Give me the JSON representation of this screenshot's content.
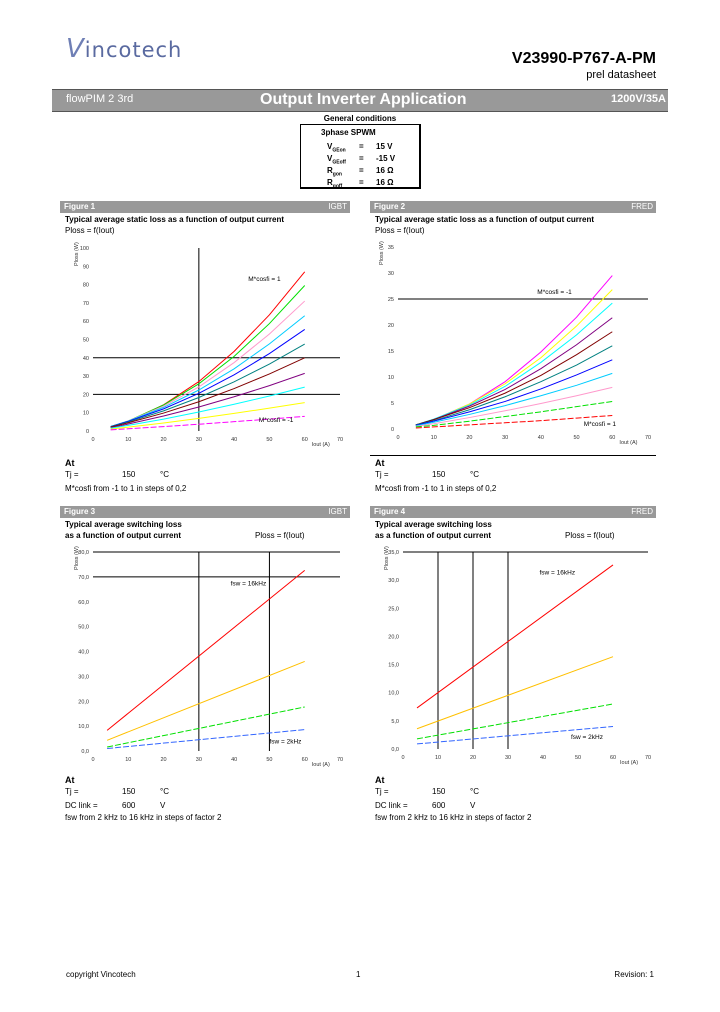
{
  "header": {
    "logo": "Vincotech",
    "part_number": "V23990-P767-A-PM",
    "doc_type": "prel datasheet"
  },
  "banner": {
    "left": "flowPIM 2 3rd",
    "center": "Output Inverter Application",
    "right": "1200V/35A"
  },
  "general_conditions": {
    "title": "General conditions",
    "mode": "3phase SPWM",
    "rows": [
      {
        "sym": "V",
        "sub": "GEon",
        "eq": "=",
        "val": "15 V"
      },
      {
        "sym": "V",
        "sub": "GEoff",
        "eq": "=",
        "val": "-15 V"
      },
      {
        "sym": "R",
        "sub": "gon",
        "eq": "=",
        "val": "16 Ω"
      },
      {
        "sym": "R",
        "sub": "goff",
        "eq": "=",
        "val": "16 Ω"
      }
    ]
  },
  "figures": [
    {
      "label": "Figure 1",
      "device": "IGBT",
      "title": "Typical average static loss as a function of output current",
      "title2": "",
      "formula": "Ploss = f(Iout)",
      "at": "At",
      "cond1": "Tj =",
      "cond1_val": "150",
      "cond1_unit": "°C",
      "cond2": "",
      "cond2_val": "",
      "cond2_unit": "",
      "note": "M*cosfi from -1 to 1 in steps of 0,2"
    },
    {
      "label": "Figure 2",
      "device": "FRED",
      "title": "Typical average static loss as a function of output current",
      "title2": "",
      "formula": "Ploss = f(Iout)",
      "at": "At",
      "cond1": "Tj =",
      "cond1_val": "150",
      "cond1_unit": "°C",
      "cond2": "",
      "cond2_val": "",
      "cond2_unit": "",
      "note": "M*cosfi from -1 to 1 in steps of 0,2"
    },
    {
      "label": "Figure 3",
      "device": "IGBT",
      "title": "Typical average switching loss",
      "title2": "as a function of output current",
      "formula": "Ploss = f(Iout)",
      "at": "At",
      "cond1": "Tj =",
      "cond1_val": "150",
      "cond1_unit": "°C",
      "cond2": "DC link =",
      "cond2_val": "600",
      "cond2_unit": "V",
      "note": "fsw from 2 kHz to 16 kHz in steps of factor 2"
    },
    {
      "label": "Figure 4",
      "device": "FRED",
      "title": "Typical average switching loss",
      "title2": "as a function of output current",
      "formula": "Ploss = f(Iout)",
      "at": "At",
      "cond1": "Tj =",
      "cond1_val": "150",
      "cond1_unit": "°C",
      "cond2": "DC link =",
      "cond2_val": "600",
      "cond2_unit": "V",
      "note": "fsw from 2 kHz to 16 kHz in steps of factor 2"
    }
  ],
  "chart_data": [
    {
      "type": "line",
      "xlabel": "Iout (A)",
      "ylabel": "Ploss (W)",
      "xlim": [
        0,
        70
      ],
      "ylim": [
        0,
        100
      ],
      "xticks": [
        "0",
        "10",
        "20",
        "30",
        "40",
        "50",
        "60",
        "70"
      ],
      "yticks": [
        "0",
        "10",
        "20",
        "30",
        "40",
        "50",
        "60",
        "70",
        "80",
        "90",
        "100"
      ],
      "hlines": [
        20,
        40
      ],
      "vlines": [
        30
      ],
      "annotations": [
        {
          "text": "M*cosfi = 1",
          "x": 44,
          "y": 82
        },
        {
          "text": "M*cosfi = -1",
          "x": 47,
          "y": 5
        }
      ],
      "x": [
        5,
        10,
        20,
        30,
        40,
        50,
        60
      ],
      "series": [
        {
          "color": "#ff0000",
          "values": [
            2.2,
            5.3,
            14.3,
            27,
            43.5,
            63.5,
            87
          ]
        },
        {
          "color": "#00e000",
          "values": [
            2.4,
            5.5,
            14.2,
            25.8,
            40.8,
            58.7,
            79.5
          ]
        },
        {
          "color": "#ff99cc",
          "values": [
            2.4,
            5.5,
            13.6,
            24.1,
            37.4,
            53,
            71
          ]
        },
        {
          "color": "#00ccff",
          "values": [
            2.5,
            5.4,
            12.9,
            22.4,
            34,
            47.6,
            63
          ]
        },
        {
          "color": "#0000ff",
          "values": [
            2.4,
            5.3,
            12.1,
            20.6,
            30.7,
            42.3,
            55.5
          ]
        },
        {
          "color": "#008080",
          "values": [
            2.3,
            4.9,
            11,
            18.3,
            26.9,
            36.6,
            47.5
          ]
        },
        {
          "color": "#800000",
          "values": [
            2.1,
            4.5,
            9.8,
            16,
            23.2,
            31.2,
            40
          ]
        },
        {
          "color": "#800080",
          "values": [
            1.8,
            3.8,
            8.2,
            13.1,
            18.7,
            24.8,
            31.5
          ]
        },
        {
          "color": "#00ffff",
          "values": [
            1.5,
            3.1,
            6.5,
            10.4,
            14.6,
            19.1,
            24
          ]
        },
        {
          "color": "#ffff00",
          "values": [
            1,
            2.1,
            4.4,
            6.9,
            9.6,
            12.5,
            15.5
          ]
        },
        {
          "color": "#ff00ff",
          "dashed": true,
          "values": [
            0.6,
            1.2,
            2.4,
            3.7,
            5.1,
            6.5,
            8
          ]
        }
      ]
    },
    {
      "type": "line",
      "xlabel": "Iout (A)",
      "ylabel": "Ploss (W)",
      "xlim": [
        0,
        70
      ],
      "ylim": [
        0,
        35
      ],
      "xticks": [
        "0",
        "10",
        "20",
        "30",
        "40",
        "50",
        "60",
        "70"
      ],
      "yticks": [
        "0",
        "5",
        "10",
        "15",
        "20",
        "25",
        "30",
        "35"
      ],
      "hlines": [
        25
      ],
      "vlines": [],
      "annotations": [
        {
          "text": "M*cosfi = -1",
          "x": 39,
          "y": 26
        },
        {
          "text": "M*cosfi = 1",
          "x": 52,
          "y": 0.6
        }
      ],
      "x": [
        5,
        10,
        20,
        30,
        40,
        50,
        60
      ],
      "series": [
        {
          "color": "#ff00ff",
          "values": [
            0.7,
            1.8,
            4.8,
            9.1,
            14.8,
            21.5,
            29.5
          ]
        },
        {
          "color": "#ffff00",
          "values": [
            0.8,
            1.8,
            4.8,
            8.7,
            13.7,
            19.8,
            26.8
          ]
        },
        {
          "color": "#00ffff",
          "values": [
            0.8,
            1.9,
            4.6,
            8.2,
            12.8,
            18.1,
            24.2
          ]
        },
        {
          "color": "#800080",
          "values": [
            0.8,
            1.8,
            4.4,
            7.6,
            11.6,
            16.2,
            21.4
          ]
        },
        {
          "color": "#800000",
          "values": [
            0.8,
            1.8,
            4.1,
            6.9,
            10.3,
            14.3,
            18.7
          ]
        },
        {
          "color": "#008080",
          "values": [
            0.8,
            1.6,
            3.7,
            6.2,
            9.1,
            12.3,
            16
          ]
        },
        {
          "color": "#0000ff",
          "values": [
            0.7,
            1.5,
            3.3,
            5.3,
            7.7,
            10.4,
            13.3
          ]
        },
        {
          "color": "#00ccff",
          "values": [
            0.6,
            1.3,
            2.8,
            4.5,
            6.4,
            8.4,
            10.7
          ]
        },
        {
          "color": "#ff99cc",
          "values": [
            0.5,
            1,
            2.2,
            3.5,
            4.9,
            6.4,
            8
          ]
        },
        {
          "color": "#00e000",
          "dashed": true,
          "values": [
            0.4,
            0.7,
            1.5,
            2.4,
            3.3,
            4.3,
            5.3
          ]
        },
        {
          "color": "#ff0000",
          "dashed": true,
          "values": [
            0.2,
            0.4,
            0.8,
            1.2,
            1.6,
            2.1,
            2.6
          ]
        }
      ]
    },
    {
      "type": "line",
      "xlabel": "Iout (A)",
      "ylabel": "Ploss (W)",
      "xlim": [
        0,
        70
      ],
      "ylim": [
        0,
        80
      ],
      "xticks": [
        "0",
        "10",
        "20",
        "30",
        "40",
        "50",
        "60",
        "70"
      ],
      "yticks": [
        "0,0",
        "10,0",
        "20,0",
        "30,0",
        "40,0",
        "50,0",
        "60,0",
        "70,0",
        "80,0"
      ],
      "hlines": [
        70,
        80
      ],
      "vlines": [
        30,
        50
      ],
      "annotations": [
        {
          "text": "fsw = 16kHz",
          "x": 39,
          "y": 66.5
        },
        {
          "text": "fsw = 2kHz",
          "x": 50,
          "y": 3
        }
      ],
      "x": [
        4,
        60
      ],
      "series": [
        {
          "color": "#ff0000",
          "values": [
            8.3,
            72.6
          ]
        },
        {
          "color": "#ffc000",
          "values": [
            4.3,
            36
          ]
        },
        {
          "color": "#00e000",
          "dashed": true,
          "values": [
            1.6,
            17.7
          ]
        },
        {
          "color": "#3366ff",
          "dashed": true,
          "values": [
            1,
            8.6
          ]
        }
      ]
    },
    {
      "type": "line",
      "xlabel": "Iout (A)",
      "ylabel": "Ploss (W)",
      "xlim": [
        0,
        70
      ],
      "ylim": [
        0,
        35
      ],
      "xticks": [
        "0",
        "10",
        "20",
        "30",
        "40",
        "50",
        "60",
        "70"
      ],
      "yticks": [
        "0,0",
        "5,0",
        "10,0",
        "15,0",
        "20,0",
        "25,0",
        "30,0",
        "35,0"
      ],
      "hlines": [
        35
      ],
      "vlines": [
        10,
        20,
        30
      ],
      "annotations": [
        {
          "text": "fsw = 16kHz",
          "x": 39,
          "y": 31
        },
        {
          "text": "fsw = 2kHz",
          "x": 48,
          "y": 1.8
        }
      ],
      "x": [
        4,
        60
      ],
      "series": [
        {
          "color": "#ff0000",
          "values": [
            7.3,
            32.7
          ]
        },
        {
          "color": "#ffc000",
          "values": [
            3.6,
            16.4
          ]
        },
        {
          "color": "#00e000",
          "dashed": true,
          "values": [
            1.8,
            8
          ]
        },
        {
          "color": "#3366ff",
          "dashed": true,
          "values": [
            0.9,
            4
          ]
        }
      ]
    }
  ],
  "footer": {
    "copyright": "copyright Vincotech",
    "page": "1",
    "revision": "Revision: 1"
  }
}
